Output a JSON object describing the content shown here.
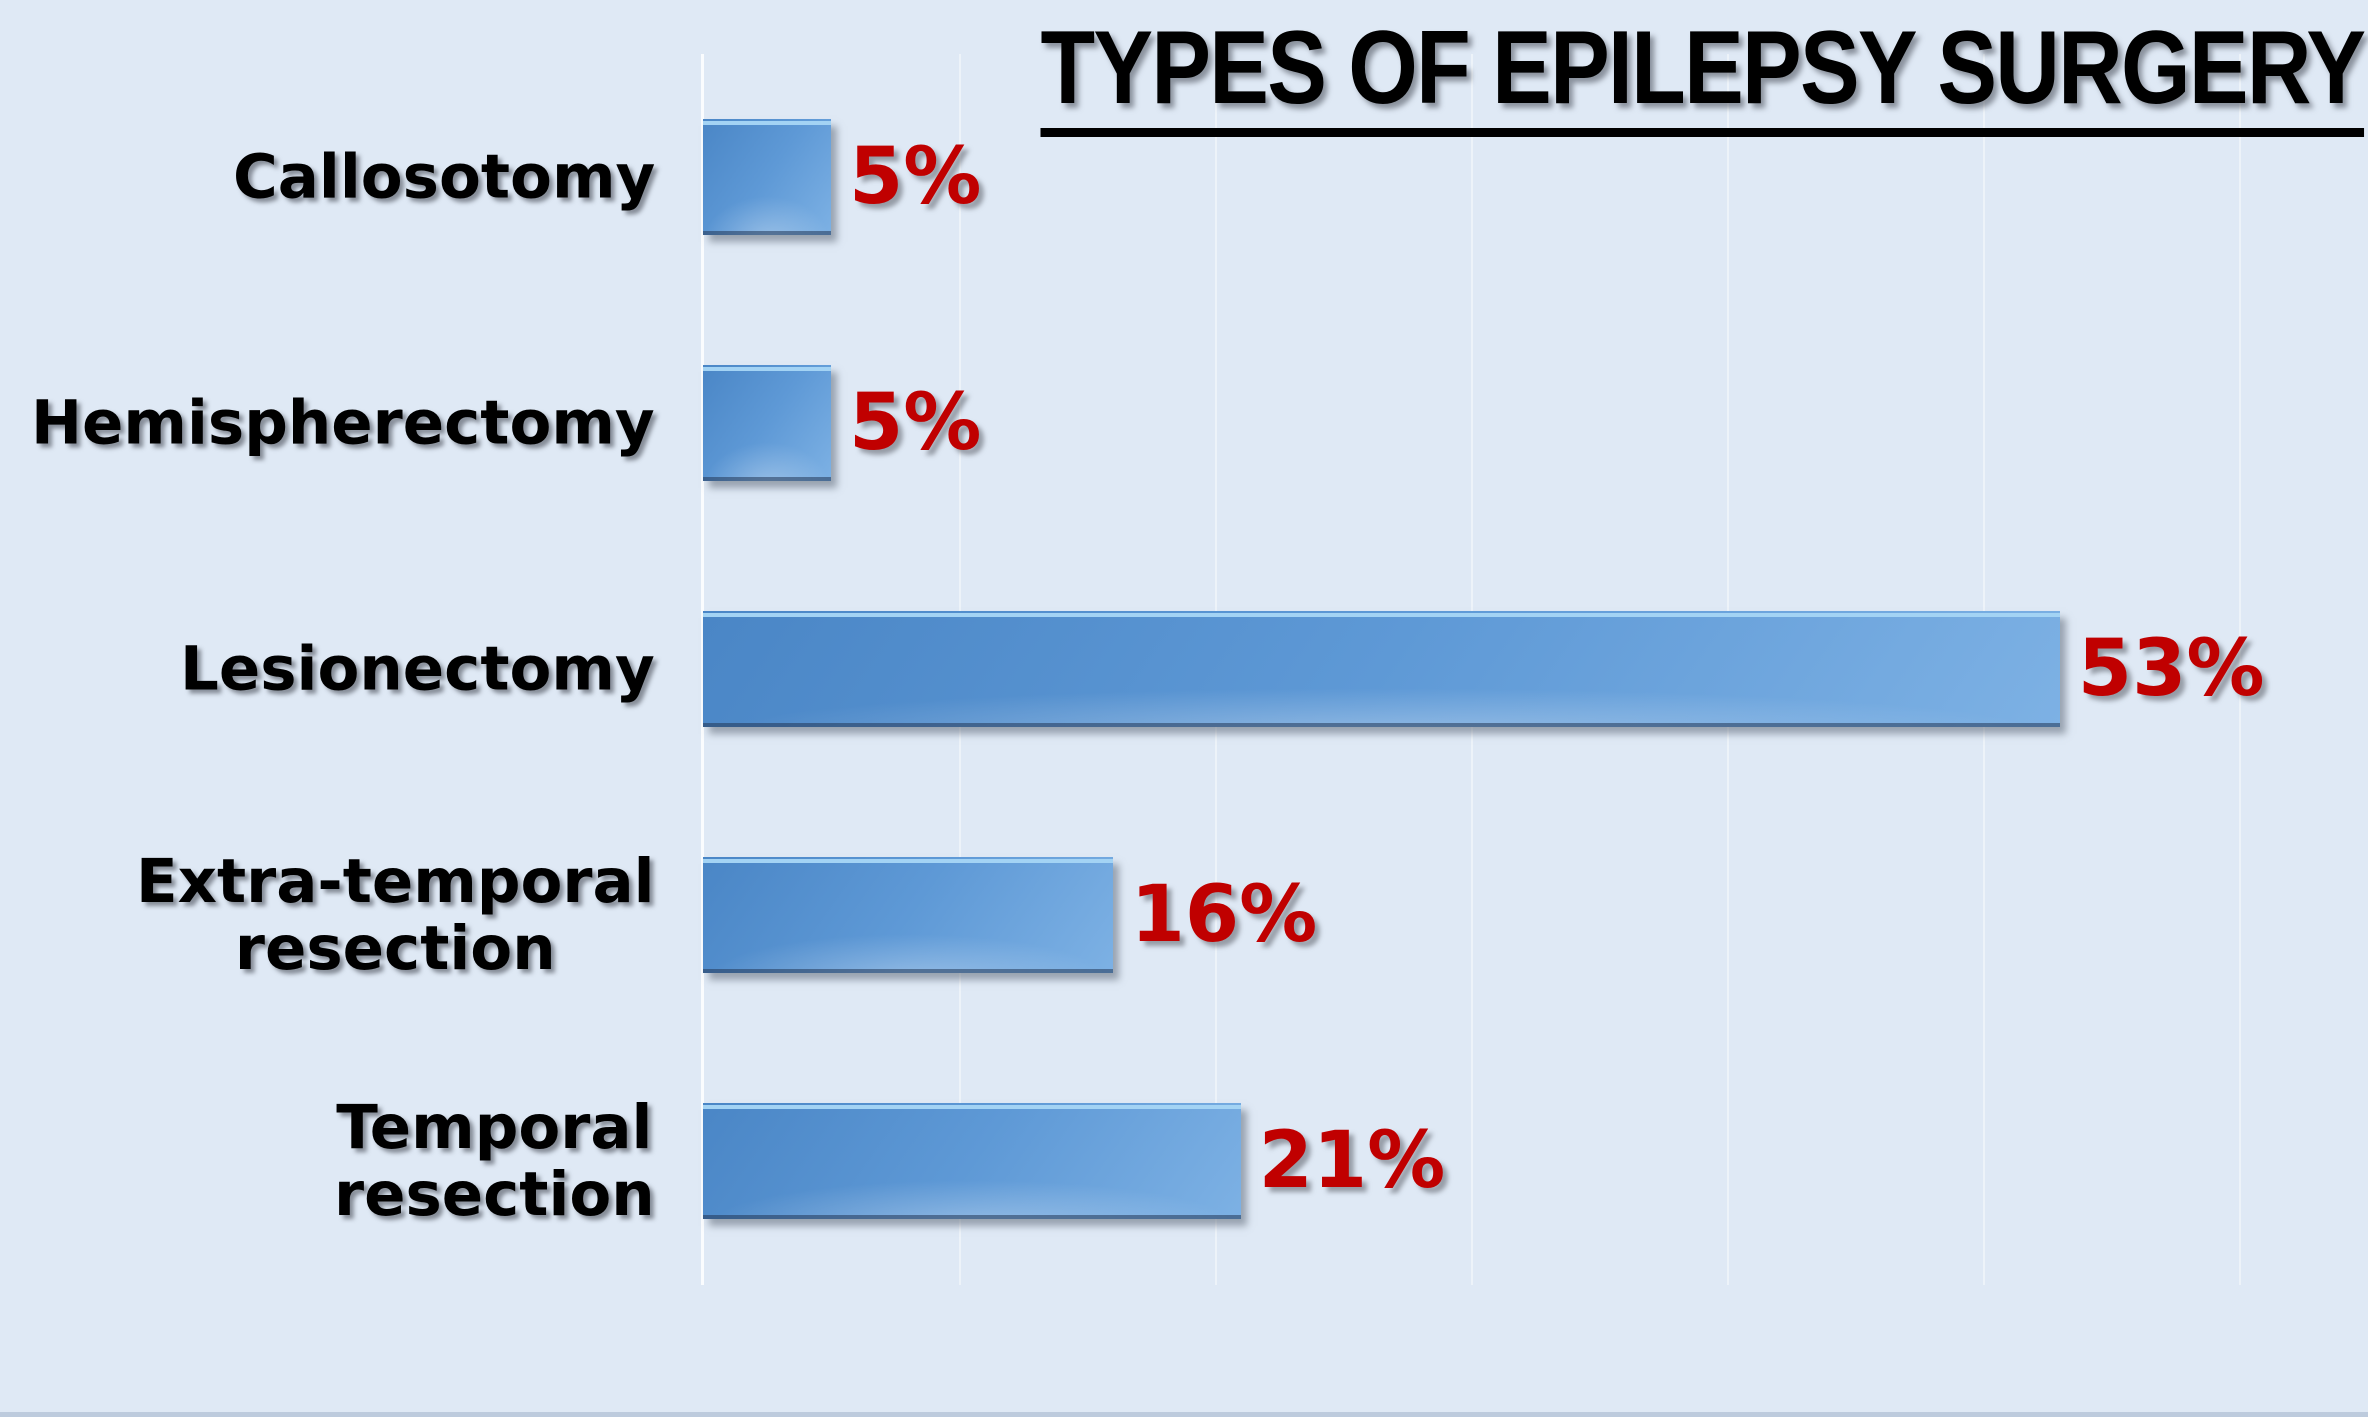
{
  "chart_data": {
    "type": "bar",
    "orientation": "horizontal",
    "title": "TYPES OF EPILEPSY SURGERY",
    "categories": [
      "Callosotomy",
      "Hemispherectomy",
      "Lesionectomy",
      "Extra-temporal\nresection",
      "Temporal\nresection"
    ],
    "values": [
      5,
      5,
      53,
      16,
      21
    ],
    "data_labels": [
      "5%",
      "5%",
      "53%",
      "16%",
      "21%"
    ],
    "xlim": [
      0,
      65
    ],
    "gridlines_percent": [
      10,
      20,
      30,
      40,
      50,
      60
    ],
    "grid_visible": true,
    "legend": null,
    "axis_tick_labels_visible": false,
    "colors": {
      "background": "#dfe9f5",
      "bar_gradient_start": "#4a86c6",
      "bar_gradient_end": "#7db1e4",
      "bar_top_highlight": "#a3d3f4",
      "value_label": "#c00000",
      "category_label": "#000000",
      "title": "#000000",
      "axis_line": "#ffffff"
    }
  }
}
